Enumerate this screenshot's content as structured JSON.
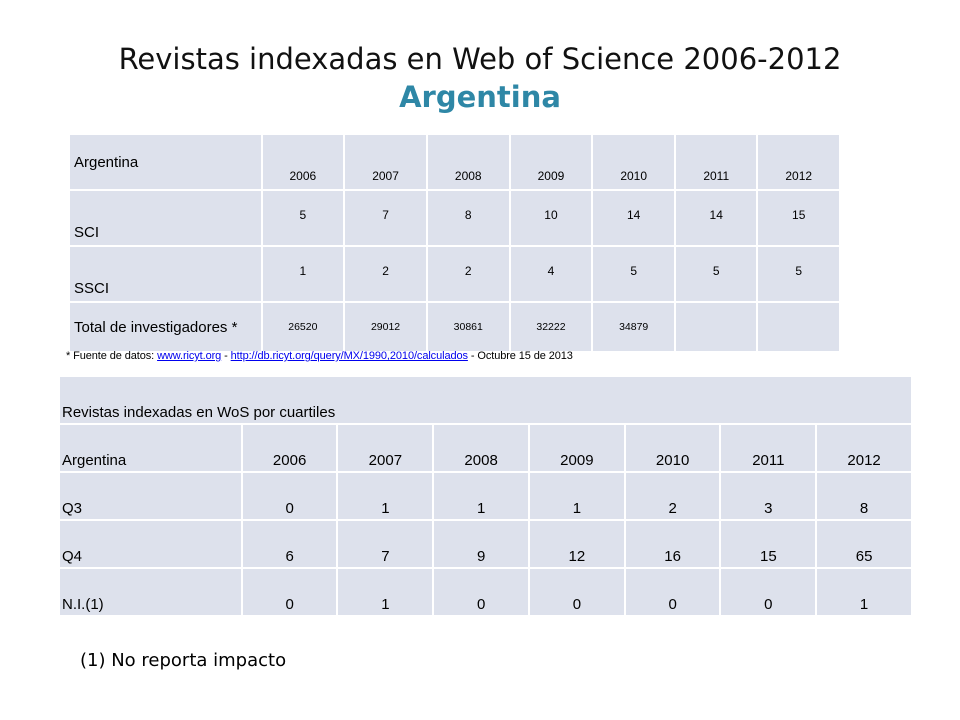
{
  "title": {
    "main": "Revistas indexadas en Web of Science 2006-2012",
    "sub": "Argentina",
    "sub_color": "#2e87a6"
  },
  "table1": {
    "header_label": "Argentina",
    "years": [
      "2006",
      "2007",
      "2008",
      "2009",
      "2010",
      "2011",
      "2012"
    ],
    "rows": [
      {
        "label": "SCI",
        "values": [
          "5",
          "7",
          "8",
          "10",
          "14",
          "14",
          "15"
        ]
      },
      {
        "label": "SSCI",
        "values": [
          "1",
          "2",
          "2",
          "4",
          "5",
          "5",
          "5"
        ]
      },
      {
        "label": "Total de investigadores *",
        "values": [
          "26520",
          "29012",
          "30861",
          "32222",
          "34879",
          "",
          ""
        ]
      }
    ]
  },
  "source": {
    "prefix": "* Fuente de datos: ",
    "link1": "www.ricyt.org",
    "sep": " - ",
    "link2": "http://db.ricyt.org/query/MX/1990,2010/calculados",
    "suffix": " - Octubre 15 de 2013",
    "link_color": "#0000ee"
  },
  "table2": {
    "caption": "Revistas indexadas en WoS por cuartiles",
    "header_label": "Argentina",
    "years": [
      "2006",
      "2007",
      "2008",
      "2009",
      "2010",
      "2011",
      "2012"
    ],
    "rows": [
      {
        "label": "Q3",
        "values": [
          "0",
          "1",
          "1",
          "1",
          "2",
          "3",
          "8"
        ]
      },
      {
        "label": "Q4",
        "values": [
          "6",
          "7",
          "9",
          "12",
          "16",
          "15",
          "65"
        ]
      },
      {
        "label": "N.I.(1)",
        "values": [
          "0",
          "1",
          "0",
          "0",
          "0",
          "0",
          "1"
        ]
      }
    ]
  },
  "footnote": "(1) No reporta impacto",
  "colors": {
    "cell_background": "#dde1ec"
  }
}
